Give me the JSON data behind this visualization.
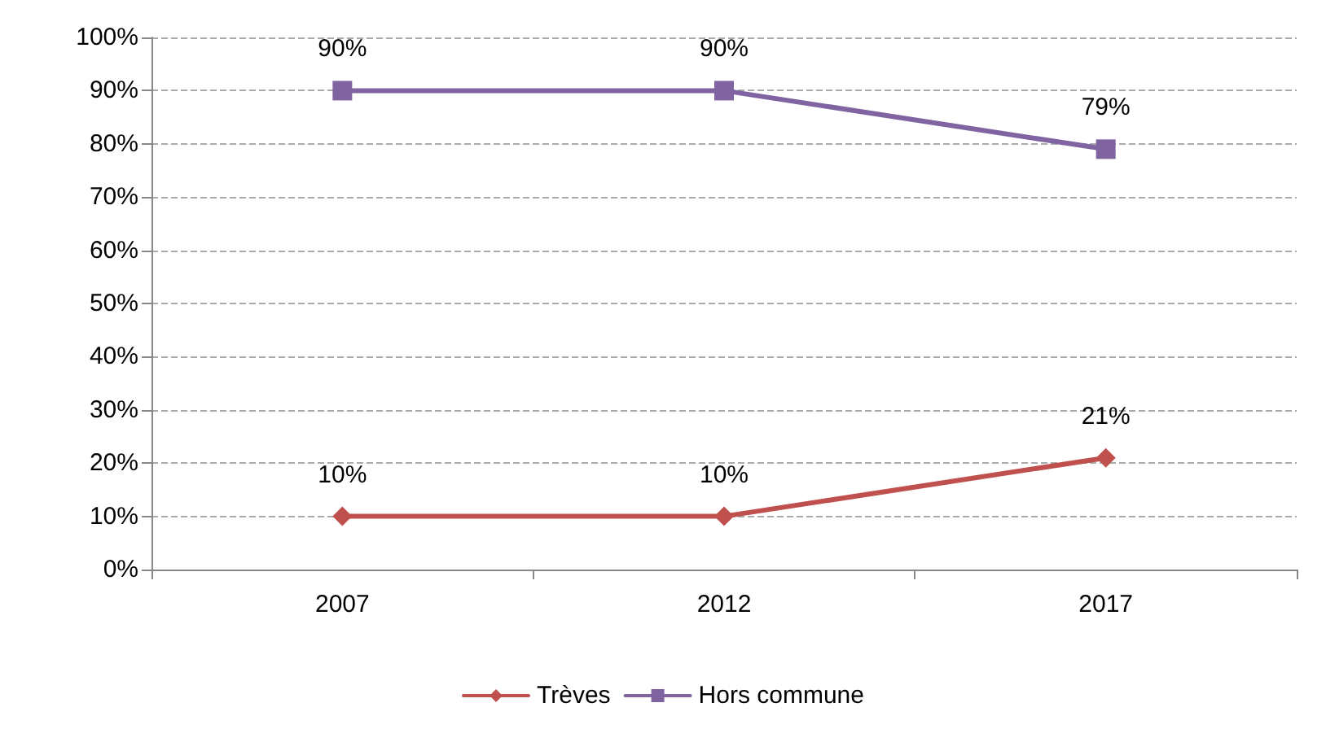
{
  "chart_data": {
    "type": "line",
    "categories": [
      "2007",
      "2012",
      "2017"
    ],
    "series": [
      {
        "name": "Trèves",
        "color": "#c0504d",
        "marker": "diamond",
        "values": [
          10,
          10,
          21
        ],
        "value_labels": [
          "10%",
          "10%",
          "21%"
        ]
      },
      {
        "name": "Hors commune",
        "color": "#8064a2",
        "marker": "square",
        "values": [
          90,
          90,
          79
        ],
        "value_labels": [
          "90%",
          "90%",
          "79%"
        ]
      }
    ],
    "ylim": [
      0,
      100
    ],
    "yticks": [
      {
        "value": 0,
        "label": "0%"
      },
      {
        "value": 10,
        "label": "10%"
      },
      {
        "value": 20,
        "label": "20%"
      },
      {
        "value": 30,
        "label": "30%"
      },
      {
        "value": 40,
        "label": "40%"
      },
      {
        "value": 50,
        "label": "50%"
      },
      {
        "value": 60,
        "label": "60%"
      },
      {
        "value": 70,
        "label": "70%"
      },
      {
        "value": 80,
        "label": "80%"
      },
      {
        "value": 90,
        "label": "90%"
      },
      {
        "value": 100,
        "label": "100%"
      }
    ],
    "grid": "y",
    "line_style": "solid",
    "legend": "bottom"
  }
}
